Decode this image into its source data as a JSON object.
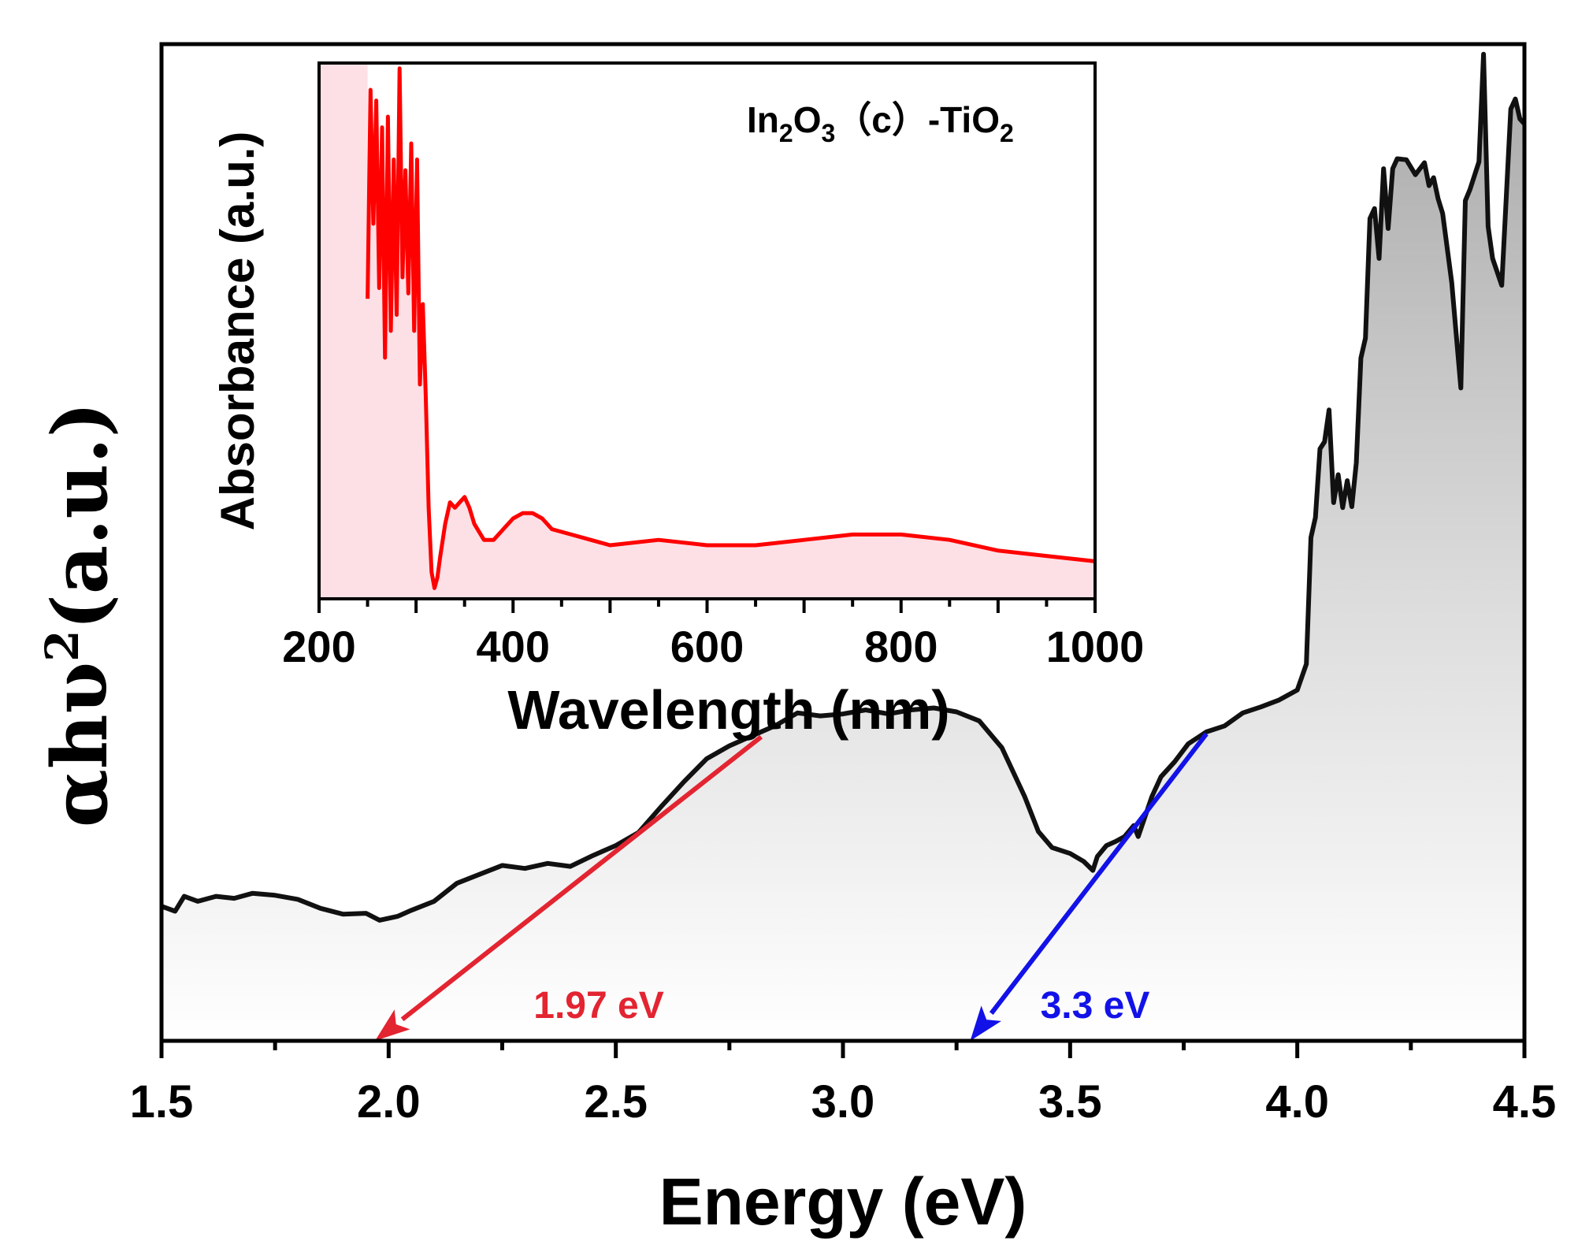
{
  "chart_data": [
    {
      "id": "main",
      "type": "line",
      "title": "",
      "xlabel": "Energy (eV)",
      "ylabel": {
        "pre": "αhυ",
        "sup": "2",
        "post": "(a.u.)"
      },
      "xlim": [
        1.5,
        4.5
      ],
      "ylim": [
        0,
        100
      ],
      "xticks": [
        1.5,
        2.0,
        2.5,
        3.0,
        3.5,
        4.0,
        4.5
      ],
      "xtick_labels": [
        "1.5",
        "2.0",
        "2.5",
        "3.0",
        "3.5",
        "4.0",
        "4.5"
      ],
      "y_tick_labels_shown": false,
      "line_color": "#111111",
      "fill_color": "#b8b8b8",
      "series": [
        {
          "name": "αhυ²",
          "x": [
            1.5,
            1.53,
            1.55,
            1.58,
            1.62,
            1.66,
            1.7,
            1.75,
            1.8,
            1.85,
            1.9,
            1.95,
            1.98,
            2.02,
            2.05,
            2.1,
            2.15,
            2.2,
            2.25,
            2.3,
            2.35,
            2.4,
            2.45,
            2.5,
            2.55,
            2.6,
            2.65,
            2.7,
            2.75,
            2.8,
            2.85,
            2.9,
            2.95,
            3.0,
            3.05,
            3.1,
            3.15,
            3.2,
            3.25,
            3.3,
            3.35,
            3.4,
            3.43,
            3.46,
            3.5,
            3.53,
            3.55,
            3.56,
            3.58,
            3.6,
            3.62,
            3.64,
            3.65,
            3.68,
            3.7,
            3.73,
            3.76,
            3.8,
            3.84,
            3.88,
            3.92,
            3.96,
            4.0,
            4.02,
            4.03,
            4.04,
            4.05,
            4.06,
            4.07,
            4.08,
            4.09,
            4.1,
            4.11,
            4.12,
            4.13,
            4.14,
            4.15,
            4.16,
            4.17,
            4.18,
            4.19,
            4.2,
            4.21,
            4.22,
            4.24,
            4.26,
            4.28,
            4.29,
            4.3,
            4.31,
            4.32,
            4.34,
            4.36,
            4.37,
            4.38,
            4.4,
            4.41,
            4.42,
            4.43,
            4.45,
            4.47,
            4.48,
            4.49,
            4.5
          ],
          "y": [
            13.5,
            13.0,
            14.5,
            14.0,
            14.5,
            14.3,
            14.8,
            14.6,
            14.2,
            13.3,
            12.7,
            12.8,
            12.1,
            12.5,
            13.1,
            14.0,
            15.8,
            16.7,
            17.6,
            17.3,
            17.8,
            17.5,
            18.6,
            19.6,
            20.9,
            23.5,
            26.0,
            28.3,
            29.6,
            30.6,
            31.6,
            32.9,
            32.6,
            32.8,
            33.2,
            32.8,
            33.2,
            33.4,
            33.0,
            32.1,
            29.4,
            24.5,
            21.0,
            19.4,
            18.8,
            18.0,
            17.1,
            18.5,
            19.6,
            20.0,
            20.5,
            21.6,
            20.5,
            24.5,
            26.5,
            28.0,
            29.8,
            31.0,
            31.6,
            32.9,
            33.5,
            34.2,
            35.2,
            37.8,
            50.5,
            52.5,
            59.4,
            60.1,
            63.3,
            54.0,
            56.8,
            53.5,
            56.2,
            53.6,
            58.0,
            68.5,
            70.5,
            82.5,
            83.5,
            78.5,
            87.5,
            81.5,
            87.5,
            88.5,
            88.4,
            86.9,
            88.1,
            85.8,
            86.6,
            84.5,
            83.0,
            76.1,
            65.5,
            84.3,
            85.4,
            88.2,
            99.0,
            81.7,
            78.5,
            75.8,
            93.5,
            94.5,
            92.5,
            92.0
          ]
        }
      ],
      "tangents": [
        {
          "name": "red-tangent",
          "color": "#e32431",
          "from": [
            2.82,
            30.5
          ],
          "to": [
            1.97,
            0
          ],
          "label": "1.97 eV"
        },
        {
          "name": "blue-tangent",
          "color": "#1212e8",
          "from": [
            3.8,
            30.8
          ],
          "to": [
            3.28,
            0
          ],
          "label": "3.3 eV"
        }
      ]
    },
    {
      "id": "inset",
      "type": "area",
      "title": "",
      "xlabel": "Wavelength (nm)",
      "ylabel": "Absorbance (a.u.)",
      "xlim": [
        200,
        1000
      ],
      "ylim": [
        0,
        100
      ],
      "xticks": [
        200,
        400,
        600,
        800,
        1000
      ],
      "xtick_labels": [
        "200",
        "400",
        "600",
        "800",
        "1000"
      ],
      "y_tick_labels_shown": false,
      "legend": {
        "parts": [
          {
            "t": "In"
          },
          {
            "t": "2",
            "sub": true
          },
          {
            "t": "O"
          },
          {
            "t": "3",
            "sub": true
          },
          {
            "t": "（c）-TiO"
          },
          {
            "t": "2",
            "sub": true
          }
        ]
      },
      "line_color": "#ff0000",
      "fill_color": "#fde0e6",
      "series": [
        {
          "name": "In2O3(c)-TiO2",
          "x": [
            250,
            253,
            256,
            259,
            262,
            265,
            268,
            271,
            274,
            277,
            280,
            283,
            286,
            289,
            292,
            295,
            298,
            301,
            304,
            307,
            310,
            313,
            316,
            319,
            322,
            325,
            330,
            335,
            340,
            345,
            350,
            355,
            360,
            370,
            380,
            390,
            400,
            410,
            420,
            430,
            440,
            460,
            480,
            500,
            550,
            600,
            650,
            700,
            750,
            800,
            850,
            900,
            950,
            1000
          ],
          "y": [
            56,
            95,
            70,
            93,
            58,
            88,
            45,
            90,
            50,
            82,
            53,
            99,
            60,
            80,
            57,
            85,
            50,
            82,
            40,
            55,
            38,
            17,
            5,
            2,
            4,
            8,
            14,
            18,
            17,
            18,
            19,
            17,
            14,
            11,
            11,
            13,
            15,
            16,
            16,
            15,
            13,
            12,
            11,
            10,
            11,
            10,
            10,
            11,
            12,
            12,
            11,
            9,
            8,
            7
          ]
        }
      ]
    }
  ]
}
